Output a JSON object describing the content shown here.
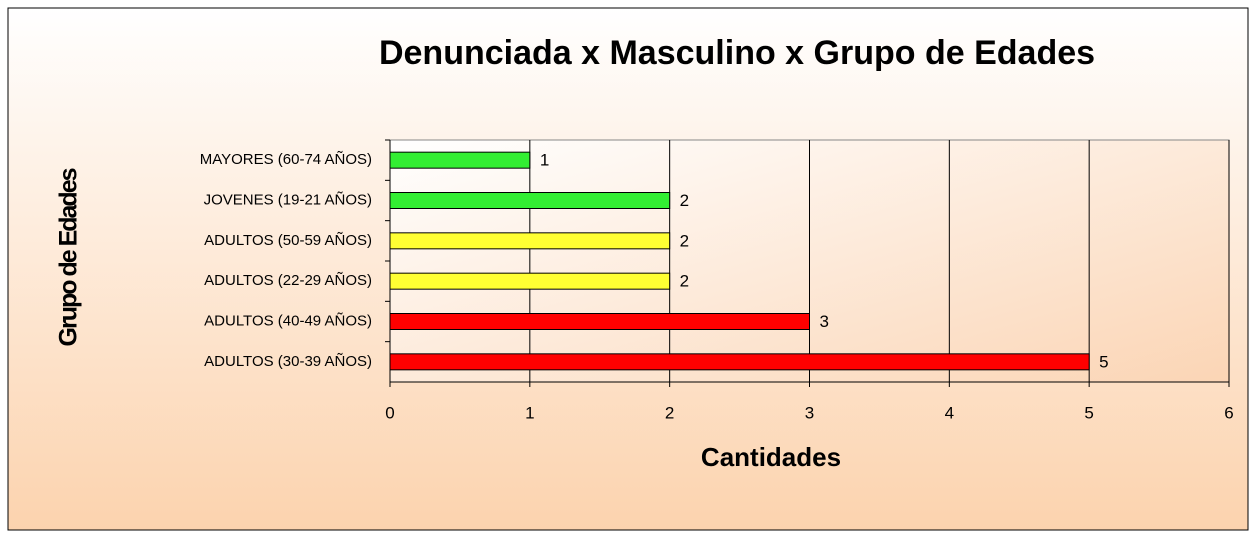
{
  "chart_data": {
    "type": "barh",
    "title": "Denunciada x Masculino x Grupo de Edades",
    "x_label": "Cantidades",
    "y_label": "Grupo de Edades",
    "categories": [
      "MAYORES (60-74 AÑOS)",
      "JOVENES (19-21 AÑOS)",
      "ADULTOS (50-59 AÑOS)",
      "ADULTOS (22-29 AÑOS)",
      "ADULTOS (40-49 AÑOS)",
      "ADULTOS (30-39 AÑOS)"
    ],
    "values": [
      1,
      2,
      2,
      2,
      3,
      5
    ],
    "colors": [
      "#33ee33",
      "#33ee33",
      "#ffff33",
      "#ffff33",
      "#ff0000",
      "#ff0000"
    ],
    "xlim": [
      0,
      6
    ],
    "xticks": [
      0,
      1,
      2,
      3,
      4,
      5,
      6
    ],
    "grid": true
  }
}
